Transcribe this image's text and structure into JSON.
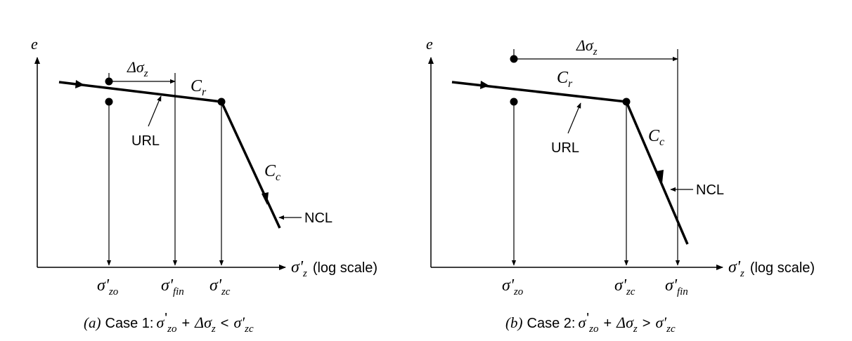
{
  "axis_label_y": "e",
  "axis_label_x_symbol": "σ'",
  "axis_label_x_sub": "z",
  "axis_label_x_text": "(log scale)",
  "url_label": "URL",
  "ncl_label": "NCL",
  "cr_main": "C",
  "cr_sub": "r",
  "cc_main": "C",
  "cc_sub": "c",
  "delta_main": "Δσ",
  "delta_sub": "z",
  "sigma": "σ'",
  "sub_zo": "zo",
  "sub_fin": "fin",
  "sub_zc": "zc",
  "case_a": {
    "paren": "(a)",
    "word": "Case 1:",
    "sigma": "σ",
    "sub1": "zo",
    "plus": "+",
    "delta": "Δσ",
    "sub2": "z",
    "rel": "<",
    "sigma2": "σ′",
    "sub3": "zc"
  },
  "case_b": {
    "paren": "(b)",
    "word": "Case 2:",
    "sigma": "σ",
    "sub1": "zo",
    "plus": "+",
    "delta": "Δσ",
    "sub2": "z",
    "rel": ">",
    "sigma2": "σ′",
    "sub3": "zc"
  }
}
